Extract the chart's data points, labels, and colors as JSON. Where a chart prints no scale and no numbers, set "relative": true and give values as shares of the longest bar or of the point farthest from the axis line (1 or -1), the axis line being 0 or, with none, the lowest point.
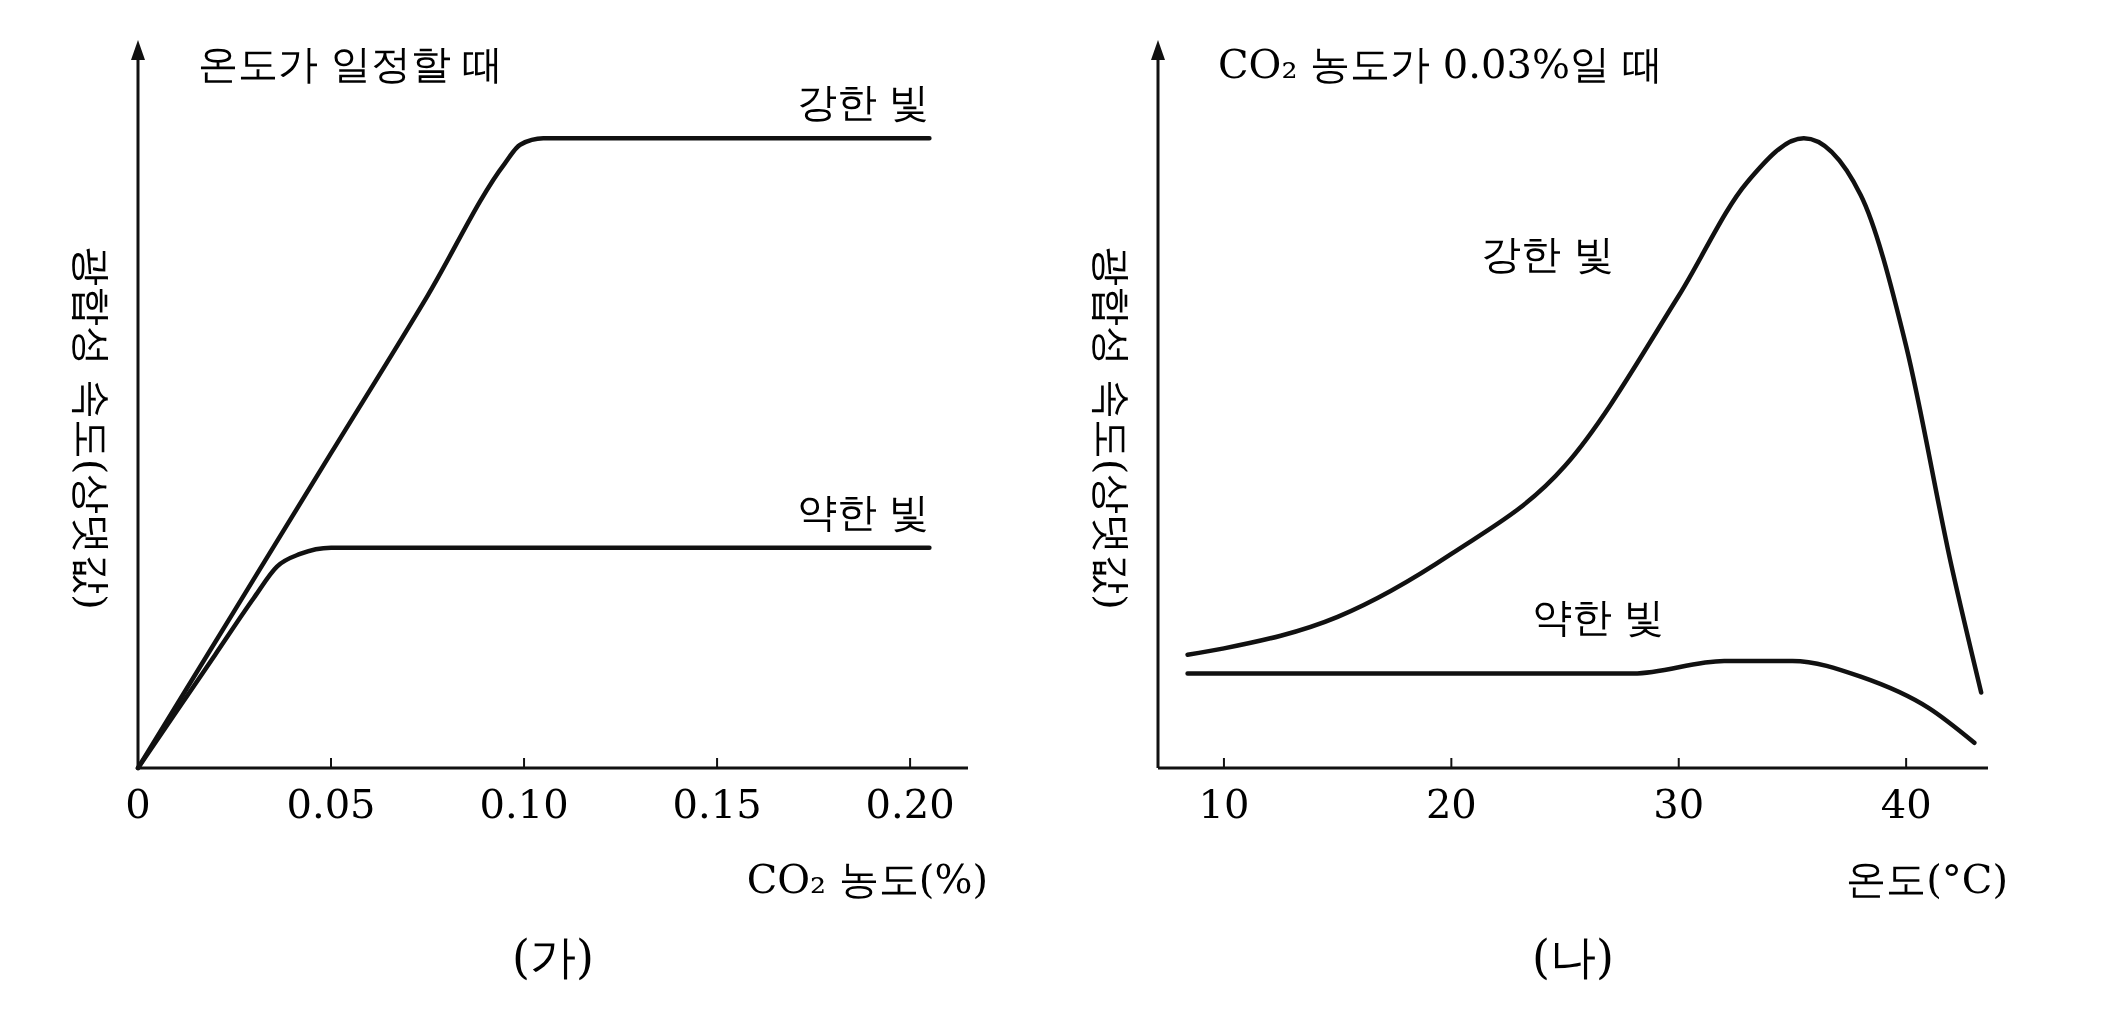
{
  "chart_data": [
    {
      "type": "line",
      "title": "온도가 일정할 때",
      "xlabel": "CO₂ 농도(%)",
      "ylabel": "광합성 속도(상댓값)",
      "relative": true,
      "xlim": [
        0,
        0.215
      ],
      "xticks": [
        0,
        0.05,
        {
          "value": 0.1,
          "label": "0.10"
        },
        0.15,
        {
          "value": 0.2,
          "label": "0.20"
        }
      ],
      "annotations": [
        "(가)"
      ],
      "marker": "none",
      "line_style": "solid",
      "series": [
        {
          "name": "강한 빛",
          "color": "#111111",
          "x": [
            0,
            0.025,
            0.05,
            0.075,
            0.095,
            0.099,
            0.105,
            0.15,
            0.205
          ],
          "values": [
            0,
            0.25,
            0.5,
            0.75,
            0.96,
            0.99,
            1,
            1,
            1
          ]
        },
        {
          "name": "약한 빛",
          "color": "#111111",
          "x": [
            0,
            0.01,
            0.02,
            0.03,
            0.036,
            0.042,
            0.05,
            0.1,
            0.205
          ],
          "values": [
            0,
            0.09,
            0.18,
            0.27,
            0.32,
            0.34,
            0.35,
            0.35,
            0.35
          ]
        }
      ]
    },
    {
      "type": "line",
      "title": "CO₂ 농도가 0.03%일 때",
      "xlabel": "온도(°C)",
      "ylabel": "광합성 속도(상댓값)",
      "relative": true,
      "xlim": [
        7.1,
        43.6
      ],
      "xticks": [
        10,
        20,
        30,
        40
      ],
      "annotations": [
        "(나)"
      ],
      "marker": "none",
      "line_style": "solid",
      "series": [
        {
          "name": "강한 빛",
          "color": "#111111",
          "x": [
            8.4,
            10,
            15,
            20,
            25,
            30,
            33,
            35.5,
            38,
            40,
            42,
            43.3
          ],
          "values": [
            0.18,
            0.19,
            0.24,
            0.34,
            0.48,
            0.75,
            0.93,
            1,
            0.91,
            0.67,
            0.32,
            0.12
          ]
        },
        {
          "name": "약한 빛",
          "color": "#111111",
          "x": [
            8.4,
            20,
            28,
            32,
            35,
            38,
            41,
            43
          ],
          "values": [
            0.15,
            0.15,
            0.15,
            0.17,
            0.17,
            0.145,
            0.095,
            0.04
          ]
        }
      ]
    }
  ]
}
